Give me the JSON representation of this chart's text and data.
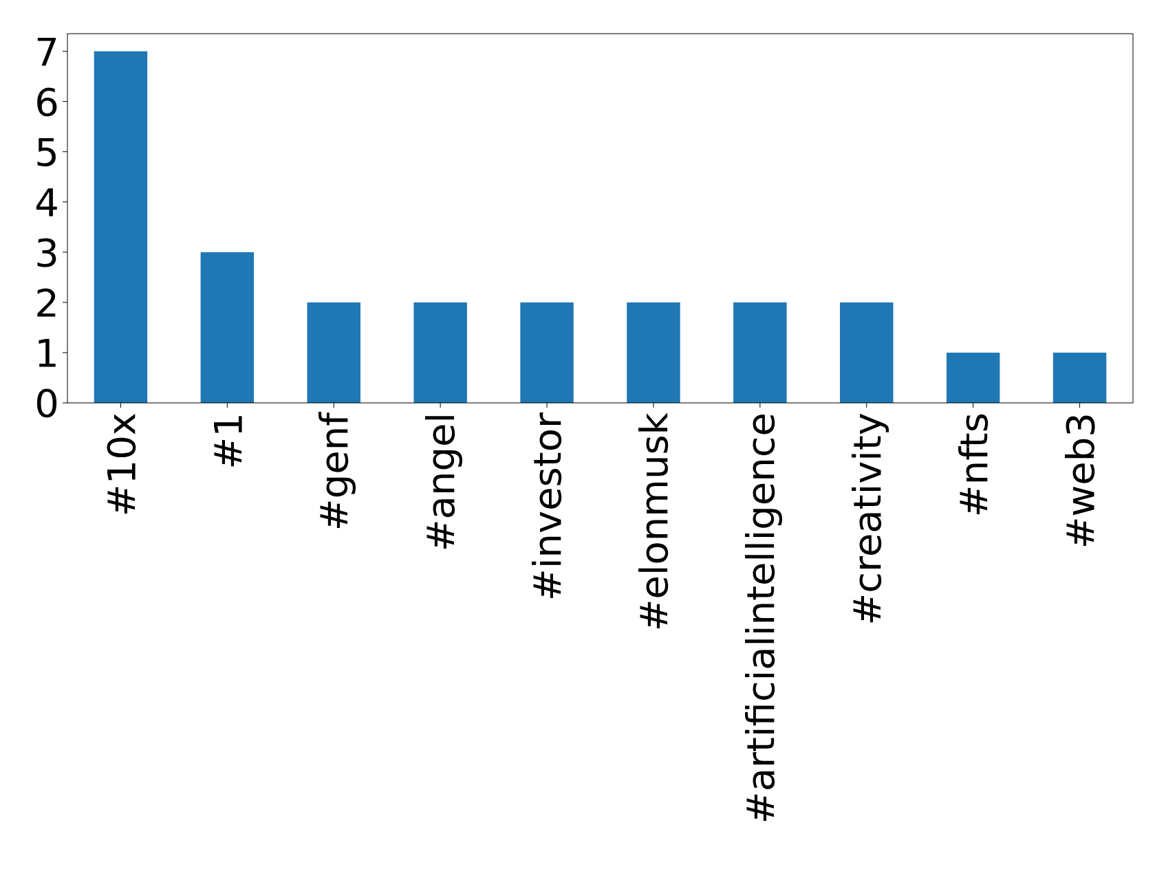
{
  "chart_data": {
    "type": "bar",
    "categories": [
      "#10x",
      "#1",
      "#genf",
      "#angel",
      "#investor",
      "#elonmusk",
      "#artificialintelligence",
      "#creativity",
      "#nfts",
      "#web3"
    ],
    "values": [
      7,
      3,
      2,
      2,
      2,
      2,
      2,
      2,
      1,
      1
    ],
    "color": "#1f77b4",
    "ylim": [
      0,
      7.35
    ],
    "yticks": [
      0,
      1,
      2,
      3,
      4,
      5,
      6,
      7
    ],
    "grid": false
  }
}
